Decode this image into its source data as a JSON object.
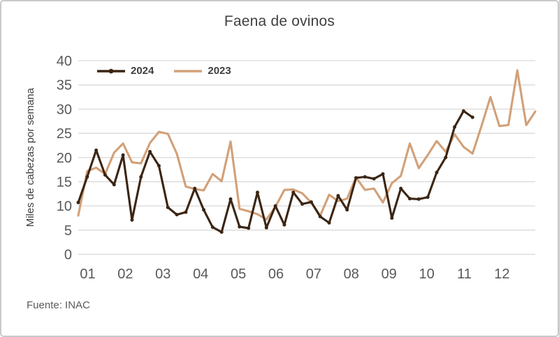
{
  "frame": {
    "source": "Fuente: INAC"
  },
  "chart_data": {
    "type": "line",
    "title": "Faena de ovinos",
    "xlabel": "",
    "ylabel": "Miles de cabezas por semana",
    "ylim": [
      0,
      40
    ],
    "ytick_step": 5,
    "grid": true,
    "legend_position": "top-left-inside",
    "x_unit": "semana (weekly points), labeled by month",
    "month_labels": [
      "01",
      "02",
      "03",
      "04",
      "05",
      "06",
      "07",
      "08",
      "09",
      "10",
      "11",
      "12"
    ],
    "weeks_per_year": 52,
    "colors": {
      "series_2024": "#3b2513",
      "series_2023": "#d2a078",
      "gridline": "#d9d9d9",
      "tick_text": "#595959",
      "title_text": "#404040"
    },
    "series": [
      {
        "name": "2024",
        "color": "#3b2513",
        "marker": "circle",
        "values": [
          10.7,
          16.0,
          21.5,
          16.4,
          14.4,
          20.5,
          7.1,
          16.0,
          21.2,
          18.3,
          9.7,
          8.2,
          8.7,
          13.6,
          9.2,
          5.6,
          4.6,
          11.4,
          5.7,
          5.4,
          12.8,
          5.5,
          10.0,
          6.1,
          12.8,
          10.4,
          10.8,
          7.8,
          6.5,
          12.1,
          9.2,
          15.8,
          16.0,
          15.6,
          16.6,
          7.5,
          13.6,
          11.5,
          11.4,
          11.8,
          16.9,
          20.0,
          26.3,
          29.6,
          28.3
        ]
      },
      {
        "name": "2023",
        "color": "#d2a078",
        "marker": "none",
        "values": [
          8.0,
          17.2,
          17.9,
          16.6,
          21.0,
          22.9,
          19.0,
          18.8,
          23.0,
          25.3,
          24.9,
          20.8,
          14.0,
          13.5,
          13.2,
          16.6,
          15.1,
          23.3,
          9.4,
          8.9,
          8.3,
          7.2,
          9.8,
          13.3,
          13.4,
          12.6,
          10.7,
          8.0,
          12.3,
          11.0,
          11.5,
          15.9,
          13.3,
          13.6,
          10.7,
          14.7,
          16.2,
          22.9,
          17.8,
          20.5,
          23.4,
          21.2,
          24.8,
          22.2,
          20.8,
          26.5,
          32.5,
          26.5,
          26.7,
          38.0,
          26.7,
          29.5
        ]
      }
    ]
  }
}
